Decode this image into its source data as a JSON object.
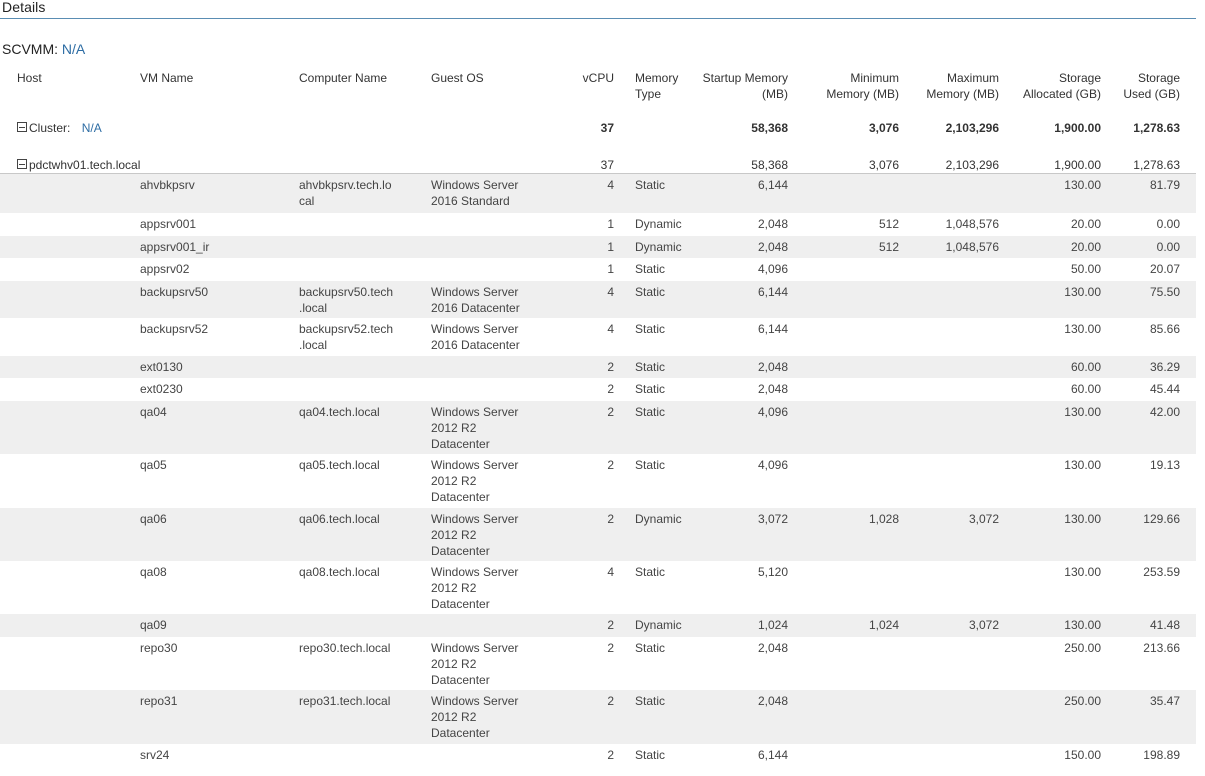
{
  "title": "Details",
  "scvmm": {
    "label": "SCVMM:",
    "value": "N/A"
  },
  "columns": {
    "host": "Host",
    "vm_name": "VM Name",
    "computer_name": "Computer Name",
    "guest_os": "Guest OS",
    "vcpu": "vCPU",
    "memory_type": "Memory Type",
    "startup_memory": "Startup Memory (MB)",
    "minimum_memory": "Minimum Memory (MB)",
    "maximum_memory": "Maximum Memory (MB)",
    "storage_allocated": "Storage Allocated (GB)",
    "storage_used": "Storage Used (GB)"
  },
  "cluster": {
    "label": "Cluster:",
    "value": "N/A",
    "vcpu": "37",
    "startup": "58,368",
    "minimum": "3,076",
    "maximum": "2,103,296",
    "allocated": "1,900.00",
    "used": "1,278.63"
  },
  "host": {
    "name": "pdctwhv01.tech.local",
    "vcpu": "37",
    "startup": "58,368",
    "minimum": "3,076",
    "maximum": "2,103,296",
    "allocated": "1,900.00",
    "used": "1,278.63"
  },
  "vms": [
    {
      "vm": "ahvbkpsrv",
      "computer": "ahvbkpsrv.tech.lo cal",
      "os": "Windows Server 2016 Standard",
      "vcpu": "4",
      "type": "Static",
      "startup": "6,144",
      "min": "",
      "max": "",
      "alloc": "130.00",
      "used": "81.79"
    },
    {
      "vm": "appsrv001",
      "computer": "",
      "os": "",
      "vcpu": "1",
      "type": "Dynamic",
      "startup": "2,048",
      "min": "512",
      "max": "1,048,576",
      "alloc": "20.00",
      "used": "0.00"
    },
    {
      "vm": "appsrv001_ir",
      "computer": "",
      "os": "",
      "vcpu": "1",
      "type": "Dynamic",
      "startup": "2,048",
      "min": "512",
      "max": "1,048,576",
      "alloc": "20.00",
      "used": "0.00"
    },
    {
      "vm": "appsrv02",
      "computer": "",
      "os": "",
      "vcpu": "1",
      "type": "Static",
      "startup": "4,096",
      "min": "",
      "max": "",
      "alloc": "50.00",
      "used": "20.07"
    },
    {
      "vm": "backupsrv50",
      "computer": "backupsrv50.tech .local",
      "os": "Windows Server 2016 Datacenter",
      "vcpu": "4",
      "type": "Static",
      "startup": "6,144",
      "min": "",
      "max": "",
      "alloc": "130.00",
      "used": "75.50"
    },
    {
      "vm": "backupsrv52",
      "computer": "backupsrv52.tech .local",
      "os": "Windows Server 2016 Datacenter",
      "vcpu": "4",
      "type": "Static",
      "startup": "6,144",
      "min": "",
      "max": "",
      "alloc": "130.00",
      "used": "85.66"
    },
    {
      "vm": "ext0130",
      "computer": "",
      "os": "",
      "vcpu": "2",
      "type": "Static",
      "startup": "2,048",
      "min": "",
      "max": "",
      "alloc": "60.00",
      "used": "36.29"
    },
    {
      "vm": "ext0230",
      "computer": "",
      "os": "",
      "vcpu": "2",
      "type": "Static",
      "startup": "2,048",
      "min": "",
      "max": "",
      "alloc": "60.00",
      "used": "45.44"
    },
    {
      "vm": "qa04",
      "computer": "qa04.tech.local",
      "os": "Windows Server 2012 R2 Datacenter",
      "vcpu": "2",
      "type": "Static",
      "startup": "4,096",
      "min": "",
      "max": "",
      "alloc": "130.00",
      "used": "42.00"
    },
    {
      "vm": "qa05",
      "computer": "qa05.tech.local",
      "os": "Windows Server 2012 R2 Datacenter",
      "vcpu": "2",
      "type": "Static",
      "startup": "4,096",
      "min": "",
      "max": "",
      "alloc": "130.00",
      "used": "19.13"
    },
    {
      "vm": "qa06",
      "computer": "qa06.tech.local",
      "os": "Windows Server 2012 R2 Datacenter",
      "vcpu": "2",
      "type": "Dynamic",
      "startup": "3,072",
      "min": "1,028",
      "max": "3,072",
      "alloc": "130.00",
      "used": "129.66"
    },
    {
      "vm": "qa08",
      "computer": "qa08.tech.local",
      "os": "Windows Server 2012 R2 Datacenter",
      "vcpu": "4",
      "type": "Static",
      "startup": "5,120",
      "min": "",
      "max": "",
      "alloc": "130.00",
      "used": "253.59"
    },
    {
      "vm": "qa09",
      "computer": "",
      "os": "",
      "vcpu": "2",
      "type": "Dynamic",
      "startup": "1,024",
      "min": "1,024",
      "max": "3,072",
      "alloc": "130.00",
      "used": "41.48"
    },
    {
      "vm": "repo30",
      "computer": "repo30.tech.local",
      "os": "Windows Server 2012 R2 Datacenter",
      "vcpu": "2",
      "type": "Static",
      "startup": "2,048",
      "min": "",
      "max": "",
      "alloc": "250.00",
      "used": "213.66"
    },
    {
      "vm": "repo31",
      "computer": "repo31.tech.local",
      "os": "Windows Server 2012 R2 Datacenter",
      "vcpu": "2",
      "type": "Static",
      "startup": "2,048",
      "min": "",
      "max": "",
      "alloc": "250.00",
      "used": "35.47"
    },
    {
      "vm": "srv24",
      "computer": "",
      "os": "",
      "vcpu": "2",
      "type": "Static",
      "startup": "6,144",
      "min": "",
      "max": "",
      "alloc": "150.00",
      "used": "198.89"
    }
  ]
}
